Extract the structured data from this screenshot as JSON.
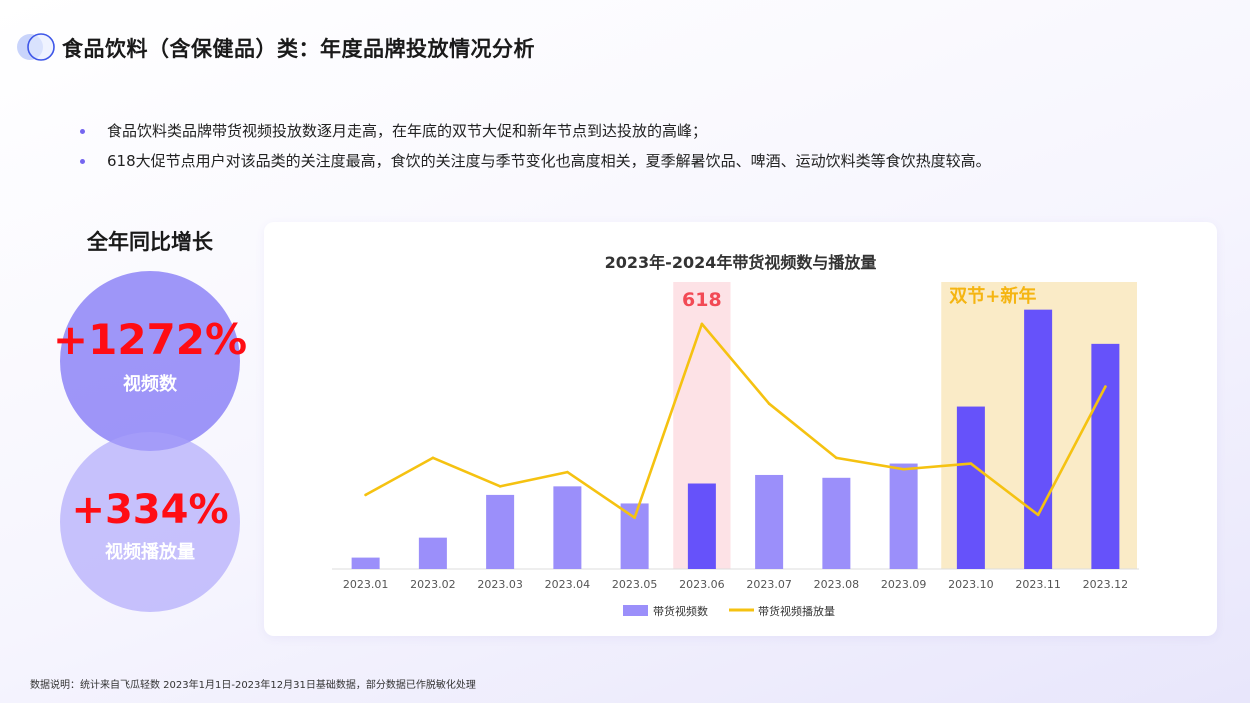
{
  "title": "食品饮料（含保健品）类：年度品牌投放情况分析",
  "bullets": [
    "食品饮料类品牌带货视频投放数逐月走高，在年底的双节大促和新年节点到达投放的高峰；",
    "618大促节点用户对该品类的关注度最高，食饮的关注度与季节变化也高度相关，夏季解暑饮品、啤酒、运动饮料类等食饮热度较高。"
  ],
  "growth": {
    "title": "全年同比增长",
    "stats": [
      {
        "value": "+1272%",
        "label": "视频数"
      },
      {
        "value": "+334%",
        "label": "视频播放量"
      }
    ]
  },
  "chart_data": {
    "type": "bar",
    "title": "2023年-2024年带货视频数与播放量",
    "categories": [
      "2023.01",
      "2023.02",
      "2023.03",
      "2023.04",
      "2023.05",
      "2023.06",
      "2023.07",
      "2023.08",
      "2023.09",
      "2023.10",
      "2023.11",
      "2023.12"
    ],
    "series": [
      {
        "name": "带货视频数",
        "type": "bar",
        "color": "#9b8ffa",
        "highlight_color": "#6652fa",
        "values": [
          4,
          11,
          26,
          29,
          23,
          30,
          33,
          32,
          37,
          57,
          91,
          79
        ]
      },
      {
        "name": "带货视频播放量",
        "type": "line",
        "color": "#f5c211",
        "values": [
          26,
          39,
          29,
          34,
          18,
          86,
          58,
          39,
          35,
          37,
          19,
          64
        ]
      }
    ],
    "highlighted_categories": [
      "2023.06",
      "2023.10",
      "2023.11",
      "2023.12"
    ],
    "annotations": [
      {
        "text": "618",
        "categories": [
          "2023.06"
        ],
        "band_color": "#fde2e6",
        "text_color": "#f24a55"
      },
      {
        "text": "双节+新年",
        "categories": [
          "2023.10",
          "2023.12"
        ],
        "band_color": "#faebc7",
        "text_color": "#f5b512"
      }
    ],
    "ylim": [
      0,
      100
    ],
    "yaxis_visible": false,
    "grid": false,
    "legend_position": "bottom"
  },
  "footnote": "数据说明：统计来自飞瓜轻数 2023年1月1日-2023年12月31日基础数据，部分数据已作脱敏化处理"
}
